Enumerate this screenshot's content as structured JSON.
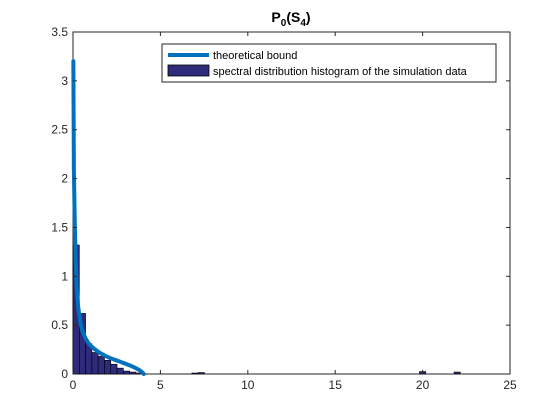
{
  "chart_data": {
    "type": "bar",
    "title": "P0(S4)",
    "title_main": "P",
    "title_sub1": "0",
    "title_mid": "(S",
    "title_sub2": "4",
    "title_end": ")",
    "xlabel": "",
    "ylabel": "",
    "xlim": [
      0,
      25
    ],
    "ylim": [
      0,
      3.5
    ],
    "xticks": [
      0,
      5,
      10,
      15,
      20,
      25
    ],
    "yticks": [
      0,
      0.5,
      1,
      1.5,
      2,
      2.5,
      3,
      3.5
    ],
    "xtick_labels": [
      "0",
      "5",
      "10",
      "15",
      "20",
      "25"
    ],
    "ytick_labels": [
      "0",
      "0.5",
      "1",
      "1.5",
      "2",
      "2.5",
      "3",
      "3.5"
    ],
    "grid": false,
    "legend_position": "top-right",
    "legend": [
      "theoretical bound",
      "spectral distribution histogram of the simulation data"
    ],
    "colors": {
      "line": "#0072BD",
      "bar": "#2E2B7B",
      "bar_edge": "#000000",
      "axis": "#262626"
    },
    "histogram": {
      "bin_width": 0.36,
      "bins": [
        {
          "x": 0.18,
          "value": 1.32
        },
        {
          "x": 0.54,
          "value": 0.62
        },
        {
          "x": 0.9,
          "value": 0.31
        },
        {
          "x": 1.26,
          "value": 0.22
        },
        {
          "x": 1.62,
          "value": 0.18
        },
        {
          "x": 1.98,
          "value": 0.14
        },
        {
          "x": 2.34,
          "value": 0.1
        },
        {
          "x": 2.7,
          "value": 0.06
        },
        {
          "x": 3.06,
          "value": 0.03
        },
        {
          "x": 3.42,
          "value": 0.02
        },
        {
          "x": 3.78,
          "value": 0.01
        },
        {
          "x": 6.98,
          "value": 0.01
        },
        {
          "x": 7.34,
          "value": 0.015
        },
        {
          "x": 20.0,
          "value": 0.025
        },
        {
          "x": 21.98,
          "value": 0.02
        }
      ]
    },
    "theoretical_bound": {
      "x": [
        0.02,
        0.05,
        0.1,
        0.15,
        0.2,
        0.3,
        0.4,
        0.5,
        0.7,
        0.9,
        1.2,
        1.5,
        1.8,
        2.1,
        2.4,
        2.7,
        3.0,
        3.3,
        3.6,
        3.8,
        3.95,
        4.05
      ],
      "y": [
        3.2,
        2.1,
        1.55,
        1.2,
        0.92,
        0.68,
        0.55,
        0.46,
        0.37,
        0.31,
        0.26,
        0.22,
        0.19,
        0.165,
        0.145,
        0.125,
        0.105,
        0.085,
        0.06,
        0.04,
        0.02,
        0.0
      ]
    }
  }
}
